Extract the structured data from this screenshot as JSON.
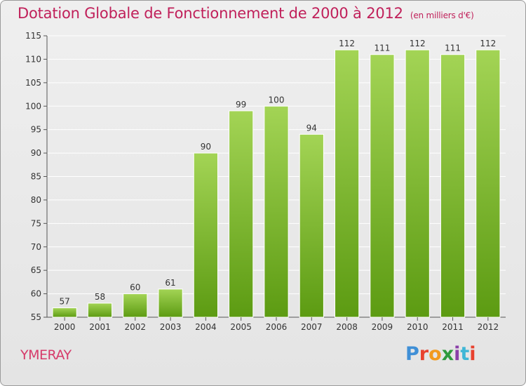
{
  "header": {
    "title": "Dotation Globale de Fonctionnement de 2000 à 2012",
    "unit": "(en milliers d'€)"
  },
  "footer": {
    "commune": "YMERAY",
    "logo_text": "Proxiti",
    "logo_colors": [
      "#3f8fd6",
      "#e8412e",
      "#f29a1d",
      "#2f9a3c",
      "#8a3fa8",
      "#3fb7d6",
      "#e8412e"
    ]
  },
  "colors": {
    "bar_light": "#a3d455",
    "bar_dark": "#5c9b12",
    "title": "#c0205a",
    "grid": "#ffffff"
  },
  "chart_data": {
    "type": "bar",
    "title": "Dotation Globale de Fonctionnement de 2000 à 2012",
    "subtitle": "(en milliers d'€)",
    "xlabel": "",
    "ylabel": "",
    "categories": [
      "2000",
      "2001",
      "2002",
      "2003",
      "2004",
      "2005",
      "2006",
      "2007",
      "2008",
      "2009",
      "2010",
      "2011",
      "2012"
    ],
    "values": [
      57,
      58,
      60,
      61,
      90,
      99,
      100,
      94,
      112,
      111,
      112,
      111,
      112
    ],
    "ylim": [
      55,
      115
    ],
    "yticks": [
      55,
      60,
      65,
      70,
      75,
      80,
      85,
      90,
      95,
      100,
      105,
      110,
      115
    ],
    "grid": true,
    "legend": "none"
  }
}
